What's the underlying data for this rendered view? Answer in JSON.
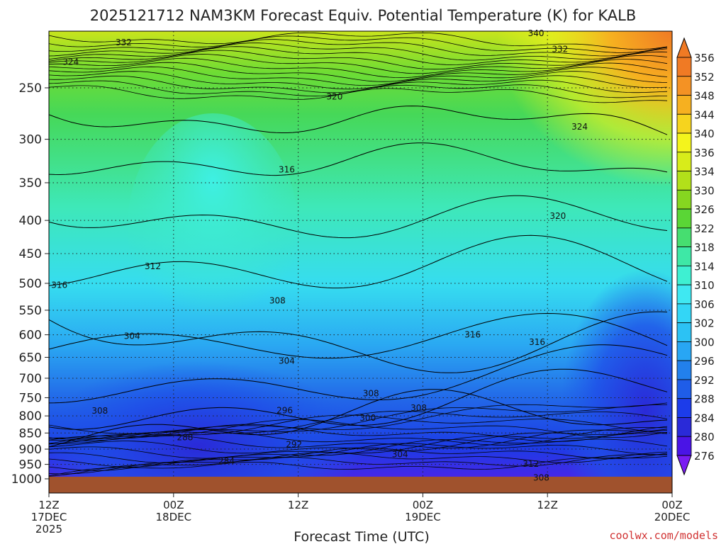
{
  "chart_data": {
    "type": "heatmap",
    "title": "2025121712 NAM3KM Forecast Equiv. Potential Temperature (K) for KALB",
    "xlabel": "Forecast Time (UTC)",
    "ylabel": "",
    "y_scale": "log-pressure",
    "y_inverted": true,
    "ylim": [
      1000,
      200
    ],
    "y_ticks": [
      250,
      300,
      350,
      400,
      450,
      500,
      550,
      600,
      650,
      700,
      750,
      800,
      850,
      900,
      950,
      1000
    ],
    "x_range_hours": [
      0,
      60
    ],
    "x_ticks": [
      {
        "hour": 0,
        "line1": "12Z",
        "line2": "17DEC",
        "line3": "2025"
      },
      {
        "hour": 12,
        "line1": "00Z",
        "line2": "18DEC",
        "line3": ""
      },
      {
        "hour": 24,
        "line1": "12Z",
        "line2": "",
        "line3": ""
      },
      {
        "hour": 36,
        "line1": "00Z",
        "line2": "19DEC",
        "line3": ""
      },
      {
        "hour": 48,
        "line1": "12Z",
        "line2": "",
        "line3": ""
      },
      {
        "hour": 60,
        "line1": "00Z",
        "line2": "20DEC",
        "line3": ""
      }
    ],
    "grid": "dotted",
    "colorbar": {
      "levels": [
        276,
        280,
        284,
        288,
        292,
        296,
        300,
        302,
        306,
        310,
        314,
        318,
        322,
        326,
        330,
        334,
        336,
        340,
        344,
        348,
        352,
        356
      ],
      "colors": [
        "#7a1cf2",
        "#4a14e6",
        "#2a2ad8",
        "#1c3cea",
        "#1f5de8",
        "#2280ec",
        "#28a6f4",
        "#2cc2f4",
        "#33d6f6",
        "#3fe8f2",
        "#3ef0d2",
        "#3ee8a6",
        "#46de70",
        "#5ad636",
        "#86d620",
        "#b2e01a",
        "#d8ec1a",
        "#f4f41c",
        "#f6d41e",
        "#f6b020",
        "#f49224",
        "#f07a24"
      ]
    },
    "contour_labels": [
      {
        "value": "332",
        "hour": 7.2,
        "p": 213
      },
      {
        "value": "324",
        "hour": 2.1,
        "p": 228
      },
      {
        "value": "320",
        "hour": 27.5,
        "p": 258
      },
      {
        "value": "340",
        "hour": 46.9,
        "p": 206
      },
      {
        "value": "332",
        "hour": 49.2,
        "p": 218
      },
      {
        "value": "324",
        "hour": 51.1,
        "p": 287
      },
      {
        "value": "316",
        "hour": 22.9,
        "p": 334
      },
      {
        "value": "320",
        "hour": 49.0,
        "p": 394
      },
      {
        "value": "312",
        "hour": 10.0,
        "p": 471
      },
      {
        "value": "316",
        "hour": 1.0,
        "p": 503
      },
      {
        "value": "308",
        "hour": 22.0,
        "p": 532
      },
      {
        "value": "304",
        "hour": 8.0,
        "p": 603
      },
      {
        "value": "316",
        "hour": 40.8,
        "p": 600
      },
      {
        "value": "316",
        "hour": 47.0,
        "p": 616
      },
      {
        "value": "304",
        "hour": 22.9,
        "p": 658
      },
      {
        "value": "308",
        "hour": 31.0,
        "p": 739
      },
      {
        "value": "308",
        "hour": 4.9,
        "p": 786
      },
      {
        "value": "296",
        "hour": 22.7,
        "p": 785
      },
      {
        "value": "300",
        "hour": 30.7,
        "p": 806
      },
      {
        "value": "308",
        "hour": 35.6,
        "p": 778
      },
      {
        "value": "288",
        "hour": 13.1,
        "p": 863
      },
      {
        "value": "292",
        "hour": 23.6,
        "p": 885
      },
      {
        "value": "284",
        "hour": 17.1,
        "p": 939
      },
      {
        "value": "304",
        "hour": 33.8,
        "p": 917
      },
      {
        "value": "312",
        "hour": 46.4,
        "p": 949
      },
      {
        "value": "308",
        "hour": 47.4,
        "p": 996
      }
    ]
  },
  "credit": "coolwx.com/models"
}
